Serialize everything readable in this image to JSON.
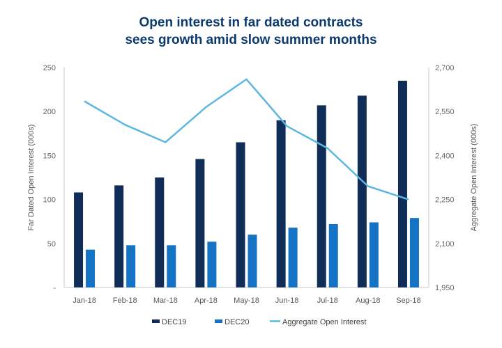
{
  "chart_data": {
    "type": "bar",
    "title_lines": [
      "Open interest in far dated contracts",
      "sees growth amid slow summer months"
    ],
    "categories": [
      "Jan-18",
      "Feb-18",
      "Mar-18",
      "Apr-18",
      "May-18",
      "Jun-18",
      "Jul-18",
      "Aug-18",
      "Sep-18"
    ],
    "series": [
      {
        "name": "DEC19",
        "type": "bar",
        "axis": "left",
        "color": "#0f2d56",
        "values": [
          108,
          116,
          125,
          146,
          165,
          190,
          207,
          218,
          235
        ]
      },
      {
        "name": "DEC20",
        "type": "bar",
        "axis": "left",
        "color": "#1473c4",
        "values": [
          43,
          48,
          48,
          52,
          60,
          68,
          72,
          74,
          79
        ]
      },
      {
        "name": "Aggregate Open Interest",
        "type": "line",
        "axis": "right",
        "color": "#5cb6e0",
        "values": [
          2585,
          2505,
          2445,
          2565,
          2660,
          2500,
          2425,
          2295,
          2250
        ]
      }
    ],
    "ylabel": "Far Dated Open Interest (000s)",
    "y2label": "Aggregate Open Interest (000s)",
    "ylim": [
      0,
      250
    ],
    "y2lim": [
      1950,
      2700
    ],
    "yticks": [
      "-",
      "50",
      "100",
      "150",
      "200",
      "250"
    ],
    "y2ticks": [
      "1,950",
      "2,100",
      "2,250",
      "2,400",
      "2,550",
      "2,700"
    ],
    "grid": false,
    "legend_position": "bottom"
  }
}
